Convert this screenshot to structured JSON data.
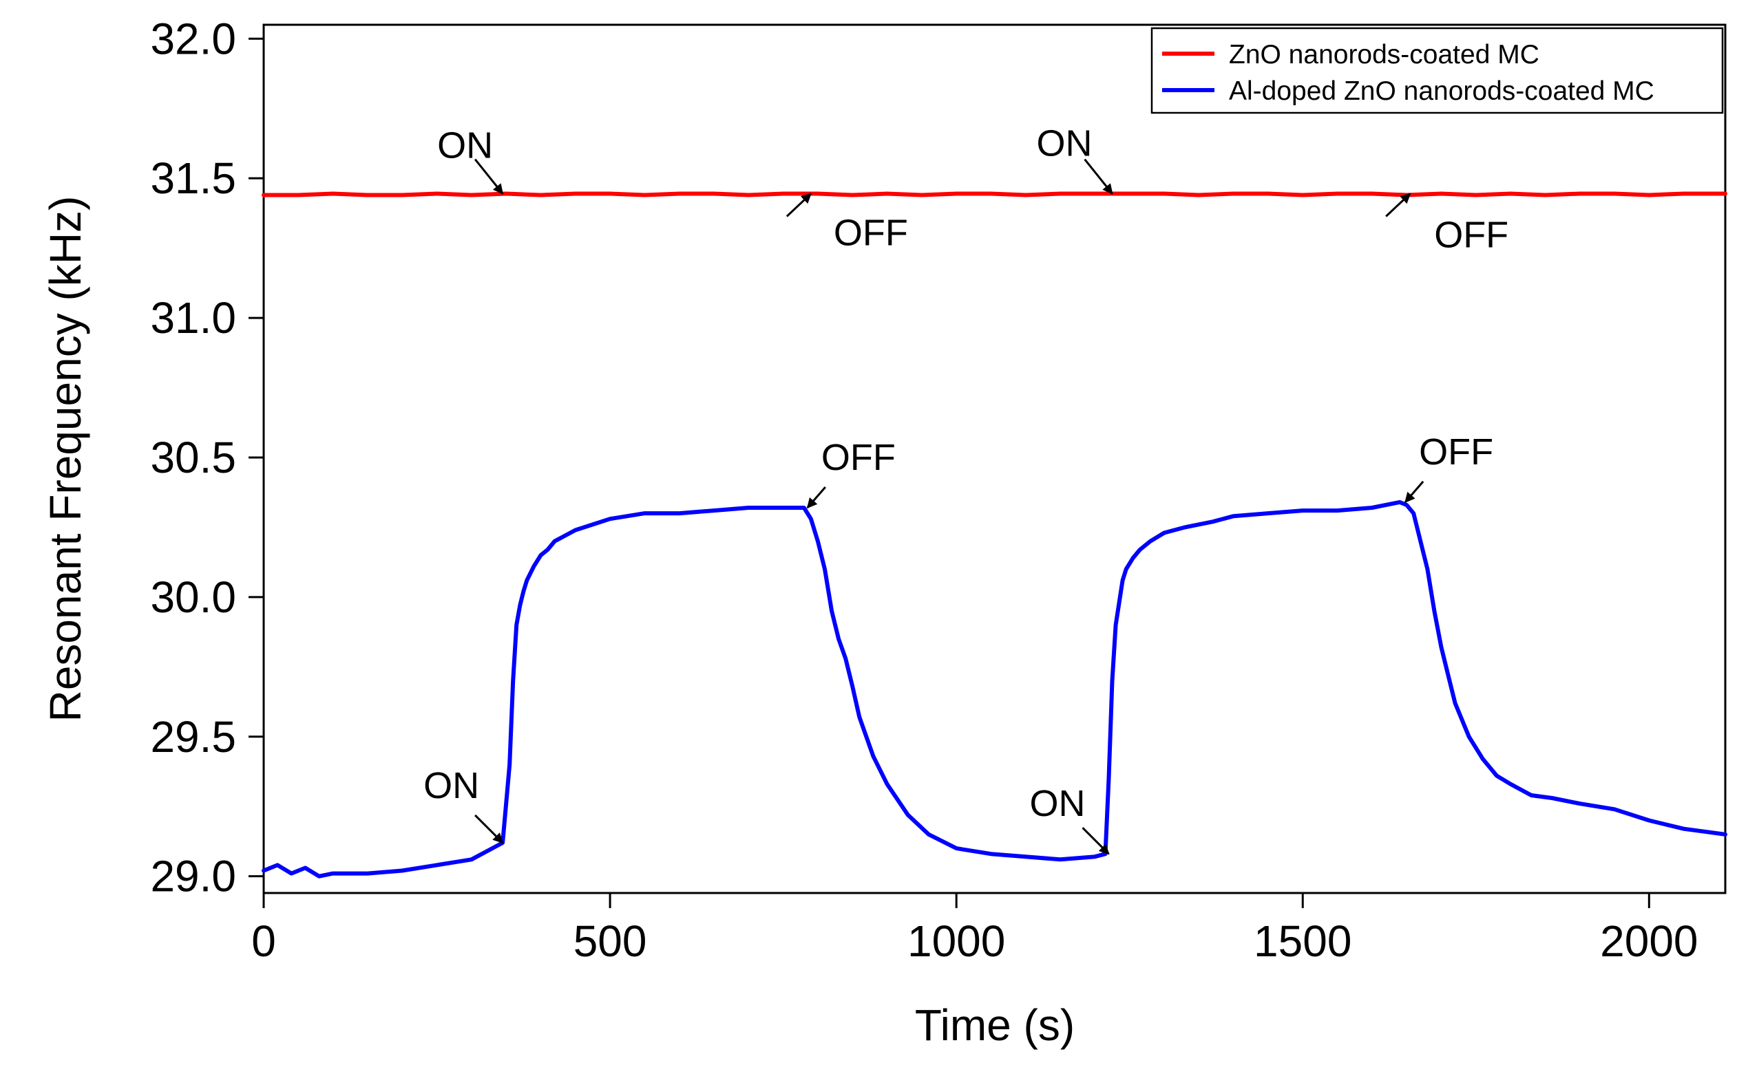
{
  "chart_data": {
    "type": "line",
    "title": "",
    "xlabel": "Time (s)",
    "ylabel": "Resonant Frequency (kHz)",
    "xlim": [
      0,
      2110
    ],
    "ylim": [
      28.94,
      32.05
    ],
    "x_ticks": [
      0,
      500,
      1000,
      1500,
      2000
    ],
    "x_tick_labels": [
      "0",
      "500",
      "1000",
      "1500",
      "2000"
    ],
    "y_ticks": [
      29.0,
      29.5,
      30.0,
      30.5,
      31.0,
      31.5,
      32.0
    ],
    "y_tick_labels": [
      "29.0",
      "29.5",
      "30.0",
      "30.5",
      "31.0",
      "31.5",
      "32.0"
    ],
    "grid": false,
    "legend_position": "top-right",
    "series": [
      {
        "name": "ZnO nanorods-coated MC",
        "color": "#ff0000",
        "x": [
          0,
          50,
          100,
          150,
          200,
          250,
          300,
          350,
          400,
          450,
          500,
          550,
          600,
          650,
          700,
          750,
          800,
          850,
          900,
          950,
          1000,
          1050,
          1100,
          1150,
          1200,
          1250,
          1300,
          1350,
          1400,
          1450,
          1500,
          1550,
          1600,
          1650,
          1700,
          1750,
          1800,
          1850,
          1900,
          1950,
          2000,
          2050,
          2110
        ],
        "y": [
          31.44,
          31.44,
          31.445,
          31.44,
          31.44,
          31.445,
          31.44,
          31.445,
          31.44,
          31.445,
          31.445,
          31.44,
          31.445,
          31.445,
          31.44,
          31.445,
          31.445,
          31.44,
          31.445,
          31.44,
          31.445,
          31.445,
          31.44,
          31.445,
          31.445,
          31.445,
          31.445,
          31.44,
          31.445,
          31.445,
          31.44,
          31.445,
          31.445,
          31.44,
          31.445,
          31.44,
          31.445,
          31.44,
          31.445,
          31.445,
          31.44,
          31.445,
          31.445
        ]
      },
      {
        "name": "Al-doped ZnO nanorods-coated MC",
        "color": "#0000ff",
        "x": [
          0,
          20,
          40,
          60,
          80,
          100,
          150,
          200,
          250,
          300,
          330,
          345,
          355,
          360,
          365,
          370,
          375,
          380,
          390,
          400,
          410,
          420,
          435,
          450,
          475,
          500,
          550,
          600,
          650,
          700,
          750,
          780,
          790,
          800,
          810,
          820,
          830,
          840,
          850,
          860,
          880,
          900,
          930,
          960,
          1000,
          1050,
          1100,
          1150,
          1200,
          1215,
          1220,
          1225,
          1230,
          1235,
          1240,
          1245,
          1255,
          1265,
          1280,
          1300,
          1330,
          1370,
          1400,
          1450,
          1500,
          1550,
          1600,
          1640,
          1650,
          1660,
          1670,
          1680,
          1690,
          1700,
          1710,
          1720,
          1740,
          1760,
          1780,
          1800,
          1830,
          1860,
          1900,
          1950,
          2000,
          2050,
          2110
        ],
        "y": [
          29.02,
          29.04,
          29.01,
          29.03,
          29.0,
          29.01,
          29.01,
          29.02,
          29.04,
          29.06,
          29.1,
          29.12,
          29.4,
          29.7,
          29.9,
          29.97,
          30.02,
          30.06,
          30.11,
          30.15,
          30.17,
          30.2,
          30.22,
          30.24,
          30.26,
          30.28,
          30.3,
          30.3,
          30.31,
          30.32,
          30.32,
          30.32,
          30.28,
          30.2,
          30.1,
          29.95,
          29.85,
          29.78,
          29.68,
          29.57,
          29.43,
          29.33,
          29.22,
          29.15,
          29.1,
          29.08,
          29.07,
          29.06,
          29.07,
          29.08,
          29.35,
          29.7,
          29.9,
          29.98,
          30.06,
          30.1,
          30.14,
          30.17,
          30.2,
          30.23,
          30.25,
          30.27,
          30.29,
          30.3,
          30.31,
          30.31,
          30.32,
          30.34,
          30.33,
          30.3,
          30.2,
          30.1,
          29.95,
          29.82,
          29.72,
          29.62,
          29.5,
          29.42,
          29.36,
          29.33,
          29.29,
          29.28,
          29.26,
          29.24,
          29.2,
          29.17,
          29.15
        ]
      }
    ],
    "annotations": [
      {
        "label": "ON",
        "series": "ZnO nanorods-coated MC",
        "x": 345,
        "y": 31.445
      },
      {
        "label": "OFF",
        "series": "ZnO nanorods-coated MC",
        "x": 790,
        "y": 31.445
      },
      {
        "label": "ON",
        "series": "ZnO nanorods-coated MC",
        "x": 1225,
        "y": 31.445
      },
      {
        "label": "OFF",
        "series": "ZnO nanorods-coated MC",
        "x": 1655,
        "y": 31.445
      },
      {
        "label": "ON",
        "series": "Al-doped ZnO nanorods-coated MC",
        "x": 345,
        "y": 29.12
      },
      {
        "label": "OFF",
        "series": "Al-doped ZnO nanorods-coated MC",
        "x": 785,
        "y": 30.32
      },
      {
        "label": "ON",
        "series": "Al-doped ZnO nanorods-coated MC",
        "x": 1220,
        "y": 29.08
      },
      {
        "label": "OFF",
        "series": "Al-doped ZnO nanorods-coated MC",
        "x": 1648,
        "y": 30.34
      }
    ]
  }
}
